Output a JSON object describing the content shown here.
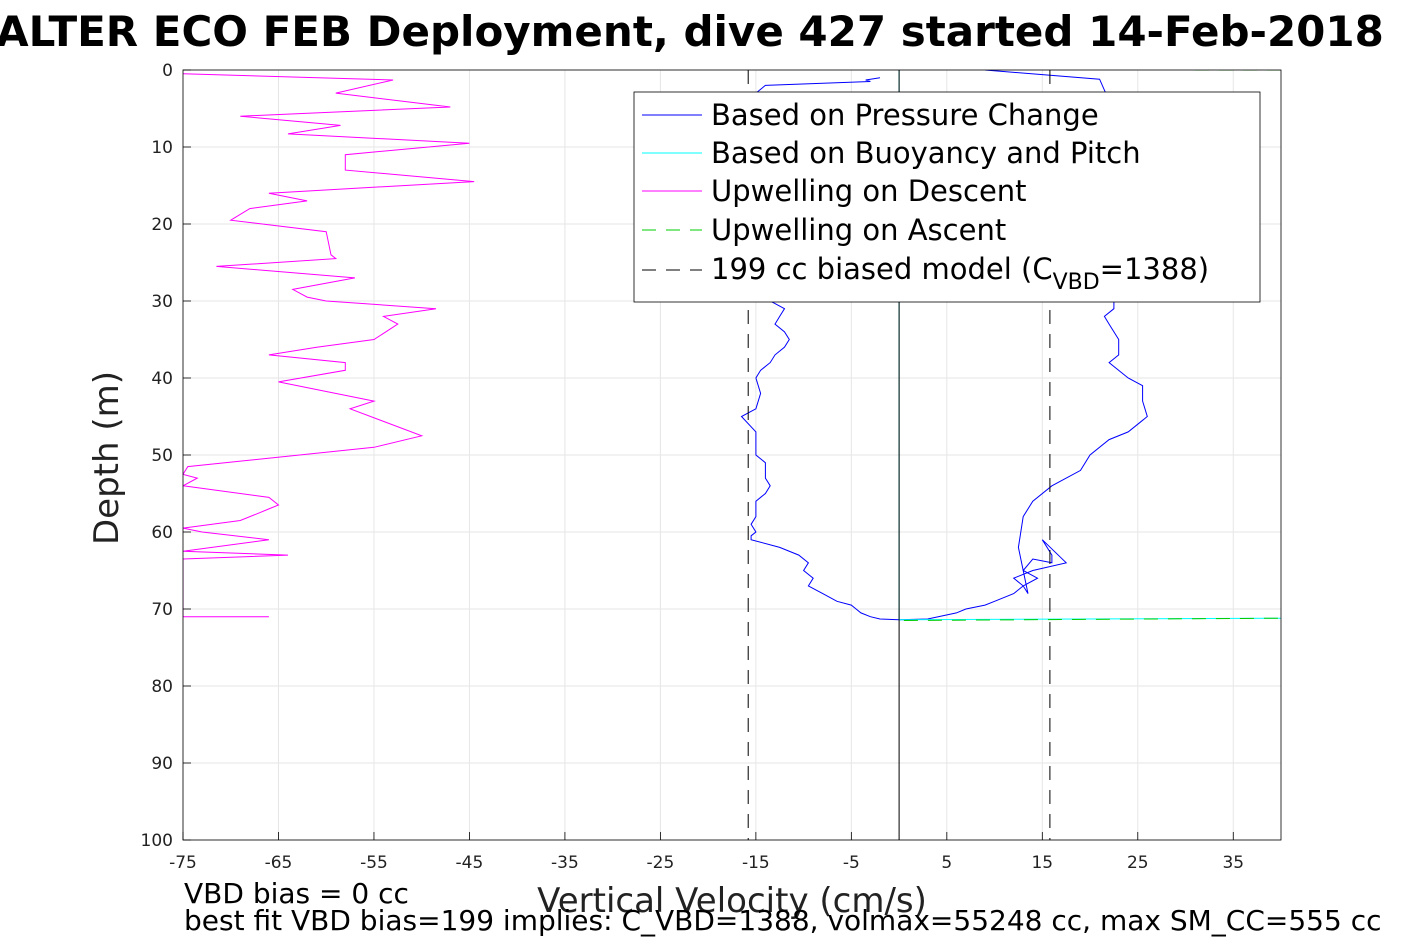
{
  "chart_data": {
    "type": "line",
    "title": "ALTER ECO FEB Deployment, dive 427 started 14-Feb-2018",
    "xlabel": "Vertical Velocity (cm/s)",
    "ylabel": "Depth (m)",
    "xlim": [
      -75,
      40
    ],
    "ylim": [
      100,
      0
    ],
    "y_reversed": true,
    "grid": true,
    "x_ticks": [
      "-75",
      "-65",
      "-55",
      "-45",
      "-35",
      "-25",
      "-15",
      "-5",
      "5",
      "15",
      "25",
      "35"
    ],
    "y_ticks": [
      "0",
      "10",
      "20",
      "30",
      "40",
      "50",
      "60",
      "70",
      "80",
      "90",
      "100"
    ],
    "legend": {
      "position": "top-right",
      "entries": [
        {
          "label": "Based on Pressure Change",
          "color": "#0000ff",
          "style": "solid"
        },
        {
          "label": "Based on Buoyancy and Pitch",
          "color": "#00ffff",
          "style": "solid"
        },
        {
          "label": "Upwelling on Descent",
          "color": "#ff00ff",
          "style": "solid"
        },
        {
          "label": "Upwelling on Ascent",
          "color": "#00cc00",
          "style": "dashed"
        },
        {
          "label": "199 cc biased model (C",
          "sub": "VBD",
          "suffix": "=1388)",
          "color": "#000000",
          "style": "dashed"
        }
      ]
    },
    "series": [
      {
        "name": "Based on Pressure Change",
        "color": "#0000ff",
        "x": [
          -2,
          -3.5,
          -3,
          -14,
          -15,
          -15,
          -12,
          -12.5,
          -13,
          -12,
          -11.5,
          -12,
          -13,
          -13.5,
          -14.5,
          -15,
          -14.5,
          -15,
          -16.5,
          -15,
          -15,
          -14,
          -14,
          -13.5,
          -14,
          -15,
          -15,
          -15.5,
          -15,
          -15.5,
          -15.5,
          -12.5,
          -10.5,
          -9.5,
          -10,
          -9,
          -9.5,
          -8,
          -6.5,
          -5,
          -4.5,
          -4,
          -3,
          -2,
          0,
          3,
          6,
          7,
          9,
          10,
          12,
          13,
          14.5,
          13,
          14,
          16,
          16,
          15,
          17.5,
          14,
          12,
          13,
          13.5,
          12.5,
          13,
          14,
          16,
          19,
          20,
          22,
          24,
          25,
          26,
          25.5,
          25.5,
          24,
          22,
          23,
          23,
          22,
          21.5,
          22.5,
          22.5,
          22,
          21,
          9
        ],
        "y": [
          1,
          1.3,
          1.5,
          2,
          3,
          29,
          31,
          32,
          33,
          34,
          35,
          36,
          37,
          38,
          39,
          40,
          42,
          44,
          45,
          47,
          50,
          51,
          53,
          54,
          55,
          56,
          58,
          59,
          60,
          60.5,
          61,
          62,
          63,
          64,
          65,
          66,
          67,
          68,
          69,
          69.5,
          70,
          70.5,
          71,
          71.3,
          71.4,
          71.3,
          70.5,
          70,
          69.5,
          69,
          68,
          67,
          66,
          65,
          63.5,
          64,
          63,
          61,
          64,
          65,
          66,
          67,
          68,
          62,
          58,
          56,
          54,
          52,
          50,
          48,
          47,
          46,
          45,
          43,
          41,
          40,
          38,
          37,
          35,
          33,
          32,
          31,
          30,
          4,
          1.2,
          0
        ]
      },
      {
        "name": "Based on Buoyancy and Pitch",
        "color": "#00ffff",
        "x": [
          0,
          0,
          40
        ],
        "y": [
          0,
          71.4,
          71.2
        ]
      },
      {
        "name": "Upwelling on Descent",
        "color": "#ff00ff",
        "x": [
          -75,
          -53,
          -59,
          -47,
          -69,
          -58.5,
          -64,
          -45,
          -58,
          -58,
          -44.5,
          -66,
          -62,
          -68,
          -70,
          -60,
          -59.5,
          -59,
          -71.5,
          -57,
          -63.5,
          -62,
          -60,
          -48.5,
          -54,
          -52.5,
          -55,
          -61,
          -66,
          -58,
          -58,
          -65,
          -55,
          -57.5,
          -50,
          -55,
          -74.5,
          -75,
          -73.5,
          -75,
          -66,
          -65,
          -66,
          -67,
          -69,
          -75,
          -73,
          -66,
          -75,
          -64,
          -75,
          -75,
          -66
        ],
        "y": [
          0.5,
          1.3,
          3,
          4.8,
          6,
          7.2,
          8.3,
          9.5,
          11,
          13,
          14.5,
          16,
          17,
          18,
          19.5,
          21,
          24,
          24.5,
          25.5,
          27,
          28.5,
          29.5,
          30,
          31,
          32,
          33,
          35,
          36,
          37,
          38,
          39,
          40.5,
          43,
          44,
          47.5,
          49,
          51.5,
          52.5,
          53,
          54,
          55.5,
          56.5,
          57,
          57.5,
          58.5,
          59.5,
          60,
          61,
          62.5,
          63,
          63.5,
          71,
          71
        ]
      },
      {
        "name": "Upwelling on Ascent",
        "color": "#00cc00",
        "dashed": true,
        "x": [
          0.5,
          40
        ],
        "y": [
          71.5,
          71.2
        ],
        "extra": [
          {
            "x": [
              31,
              40
            ],
            "y": [
              0,
              0
            ]
          }
        ]
      },
      {
        "name": "199 cc biased model",
        "color": "#000000",
        "dashed": true,
        "x": [
          -15.8,
          -15.8
        ],
        "y": [
          0,
          100
        ],
        "extra": [
          {
            "x": [
              15.8,
              15.8
            ],
            "y": [
              0,
              100
            ]
          }
        ]
      },
      {
        "name": "zero line",
        "color": "#000000",
        "dashed": false,
        "x": [
          0,
          0
        ],
        "y": [
          0,
          100
        ]
      }
    ]
  },
  "notes": {
    "line1": "VBD bias = 0 cc",
    "line2": "best fit VBD bias=199 implies: C_VBD=1388, volmax=55248 cc, max SM_CC=555 cc"
  }
}
